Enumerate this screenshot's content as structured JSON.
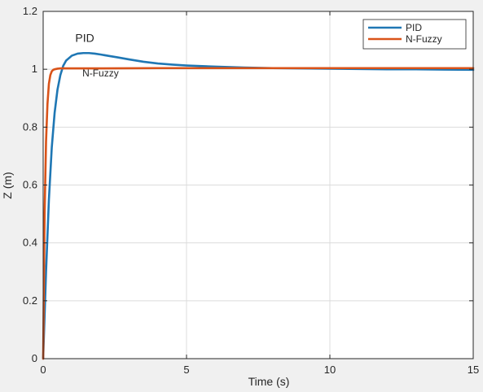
{
  "chart_data": {
    "type": "line",
    "title": "",
    "xlabel": "Time (s)",
    "ylabel": "Z (m)",
    "xlim": [
      0,
      15
    ],
    "ylim": [
      0,
      1.2
    ],
    "xticks": [
      0,
      5,
      10,
      15
    ],
    "yticks": [
      0,
      0.2,
      0.4,
      0.6,
      0.8,
      1,
      1.2
    ],
    "xtick_labels": [
      "0",
      "5",
      "10",
      "15"
    ],
    "ytick_labels": [
      "0",
      "0.2",
      "0.4",
      "0.6",
      "0.8",
      "1",
      "1.2"
    ],
    "grid": true,
    "legend_position": "top-right",
    "series": [
      {
        "name": "PID",
        "color": "#1f77b4",
        "x": [
          0,
          0.1,
          0.2,
          0.3,
          0.4,
          0.5,
          0.6,
          0.7,
          0.8,
          1.0,
          1.2,
          1.4,
          1.6,
          1.8,
          2.0,
          2.3,
          2.6,
          3.0,
          3.5,
          4.0,
          4.5,
          5.0,
          6.0,
          7.0,
          8.0,
          9.0,
          10.0,
          11.0,
          12.0,
          13.0,
          14.0,
          15.0
        ],
        "y": [
          0,
          0.3,
          0.55,
          0.73,
          0.85,
          0.93,
          0.98,
          1.012,
          1.03,
          1.047,
          1.054,
          1.056,
          1.056,
          1.054,
          1.051,
          1.046,
          1.041,
          1.034,
          1.026,
          1.02,
          1.016,
          1.013,
          1.009,
          1.006,
          1.004,
          1.003,
          1.002,
          1.001,
          1.0,
          1.0,
          0.999,
          0.998
        ]
      },
      {
        "name": "N-Fuzzy",
        "color": "#d95319",
        "x": [
          0,
          0.05,
          0.1,
          0.15,
          0.2,
          0.25,
          0.3,
          0.35,
          0.4,
          0.5,
          0.6,
          0.8,
          1.0,
          2.0,
          4.0,
          6.0,
          8.0,
          10.0,
          12.0,
          15.0
        ],
        "y": [
          0,
          0.5,
          0.75,
          0.88,
          0.95,
          0.98,
          0.993,
          0.998,
          1.0,
          1.002,
          1.003,
          1.003,
          1.003,
          1.003,
          1.004,
          1.004,
          1.004,
          1.004,
          1.004,
          1.004
        ]
      }
    ],
    "annotations": [
      {
        "text": "PID",
        "x": 1.45,
        "y": 1.095
      },
      {
        "text": "N-Fuzzy",
        "x": 2.0,
        "y": 0.975
      }
    ]
  }
}
